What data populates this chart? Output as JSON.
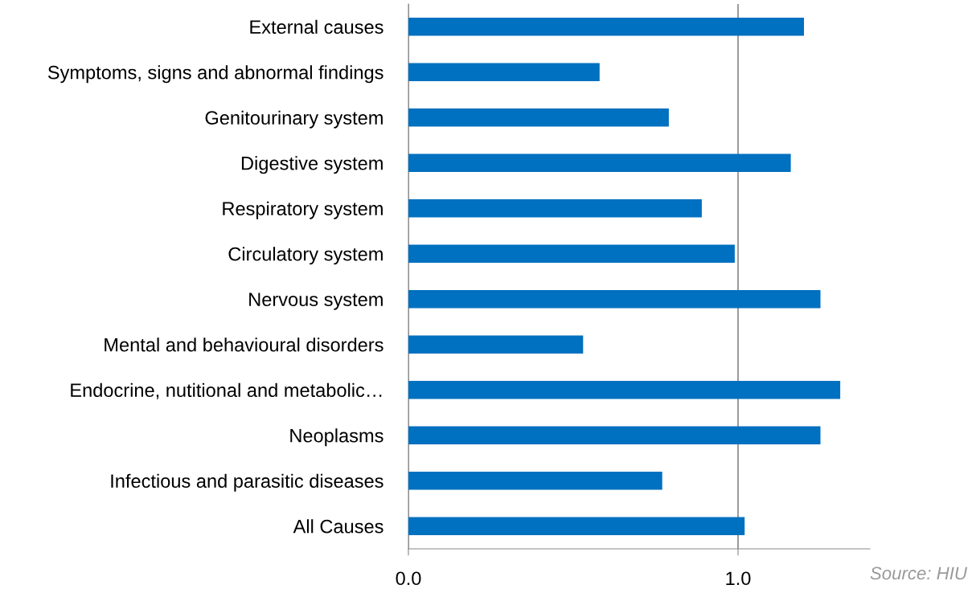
{
  "chart_data": {
    "type": "bar",
    "orientation": "horizontal",
    "categories": [
      "External causes",
      "Symptoms, signs and abnormal findings",
      "Genitourinary system",
      "Digestive system",
      "Respiratory system",
      "Circulatory system",
      "Nervous system",
      "Mental and behavioural disorders",
      "Endocrine, nutitional and metabolic…",
      "Neoplasms",
      "Infectious and parasitic diseases",
      "All Causes"
    ],
    "values": [
      1.2,
      0.58,
      0.79,
      1.16,
      0.89,
      0.99,
      1.25,
      0.53,
      1.31,
      1.25,
      0.77,
      1.02
    ],
    "color": "#0070c0",
    "xlim": [
      0,
      1.4
    ],
    "xticks": [
      {
        "value": 0,
        "label": "0.0"
      },
      {
        "value": 1,
        "label": "1.0"
      }
    ],
    "grid": "x",
    "legend": false,
    "annotations": [
      "Source: HIU"
    ]
  }
}
